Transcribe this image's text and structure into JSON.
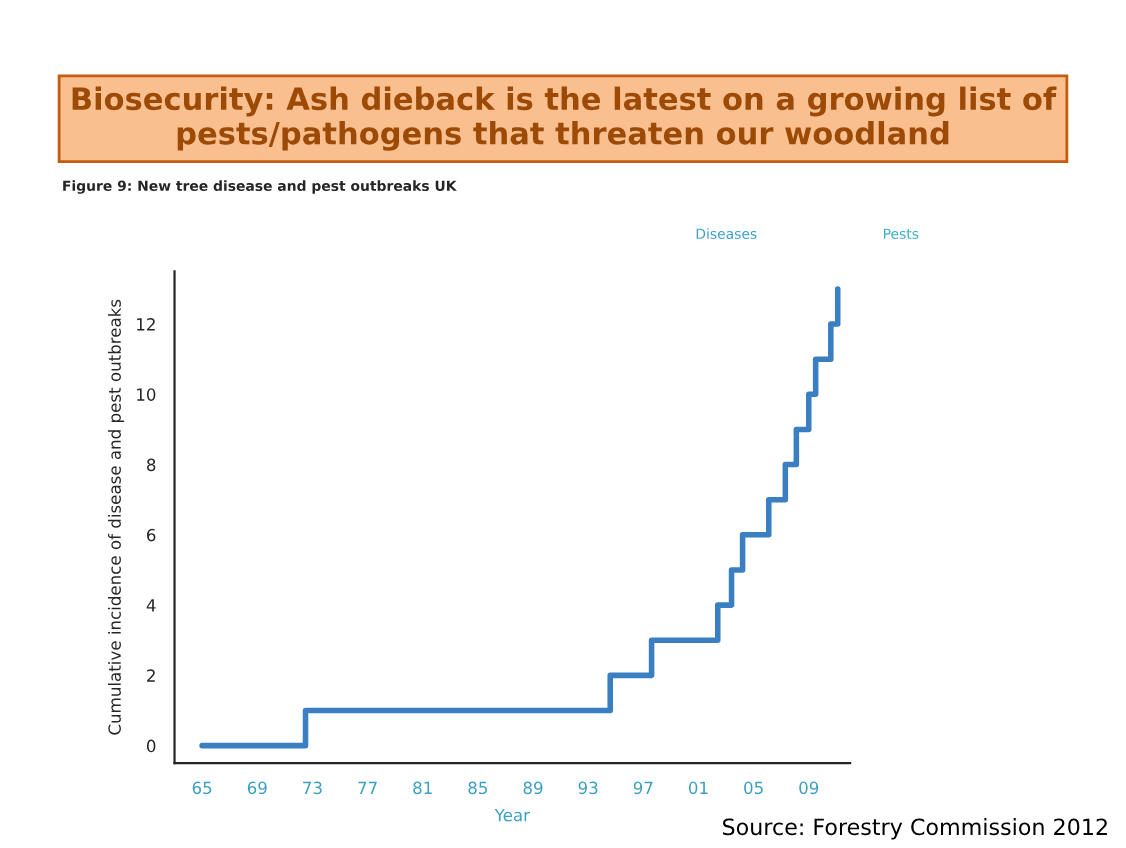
{
  "chart_data": {
    "type": "step",
    "title": "Biosecurity: Ash dieback is the latest on a growing list of pests/pathogens that threaten our woodland",
    "subtitle": "Figure 9: New tree disease and pest outbreaks UK",
    "xlabel": "Year",
    "ylabel": "Cumulative incidence of disease and pest outbreaks",
    "annotations": [
      "Diseases",
      "Pests",
      "Source: Forestry Commission 2012"
    ],
    "x": [
      1965,
      1972.5,
      1994.6,
      1997.6,
      2002.4,
      2003.4,
      2004.2,
      2006.1,
      2007.3,
      2008.1,
      2009.0,
      2009.5,
      2010.6,
      2011.1
    ],
    "values": [
      0,
      1,
      2,
      3,
      4,
      5,
      6,
      7,
      8,
      9,
      10,
      11,
      12,
      13
    ],
    "color": "#3a7fc1",
    "xlim": [
      1963,
      2012
    ],
    "ylim": [
      -0.5,
      13.5
    ],
    "xticks": [
      {
        "value": 1965,
        "label": "65"
      },
      {
        "value": 1969,
        "label": "69"
      },
      {
        "value": 1973,
        "label": "73"
      },
      {
        "value": 1977,
        "label": "77"
      },
      {
        "value": 1981,
        "label": "81"
      },
      {
        "value": 1985,
        "label": "85"
      },
      {
        "value": 1989,
        "label": "89"
      },
      {
        "value": 1993,
        "label": "93"
      },
      {
        "value": 1997,
        "label": "97"
      },
      {
        "value": 2001,
        "label": "01"
      },
      {
        "value": 2005,
        "label": "05"
      },
      {
        "value": 2009,
        "label": "09"
      }
    ],
    "yticks": [
      0,
      2,
      4,
      6,
      8,
      10,
      12
    ]
  }
}
